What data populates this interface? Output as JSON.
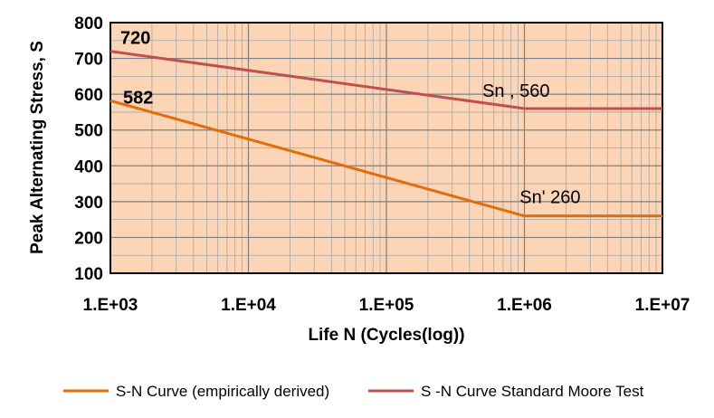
{
  "chart_data": {
    "type": "line",
    "title": "",
    "xlabel": "Life N  (Cycles(log))",
    "ylabel": "Peak Alternating Stress, S",
    "x_scale": "log",
    "xlim": [
      1000,
      10000000
    ],
    "ylim": [
      100,
      800
    ],
    "x_ticks": [
      1000,
      10000,
      100000,
      1000000,
      10000000
    ],
    "x_tick_labels": [
      "1.E+03",
      "1.E+04",
      "1.E+05",
      "1.E+06",
      "1.E+07"
    ],
    "y_ticks": [
      100,
      200,
      300,
      400,
      500,
      600,
      700,
      800
    ],
    "y_tick_labels": [
      "100",
      "200",
      "300",
      "400",
      "500",
      "600",
      "700",
      "800"
    ],
    "grid": true,
    "plot_background": "#fbd5b5",
    "grid_color": "#a6a6a6",
    "legend_position": "bottom",
    "series": [
      {
        "name": "S-N Curve (empirically derived)",
        "color": "#e46c0a",
        "x": [
          1000,
          1000000,
          10000000
        ],
        "y": [
          582,
          260,
          260
        ]
      },
      {
        "name": "S -N Curve Standard Moore Test",
        "color": "#c0504d",
        "x": [
          1000,
          1000000,
          10000000
        ],
        "y": [
          720,
          560,
          560
        ]
      }
    ],
    "annotations": [
      {
        "text": "720",
        "x": 1000,
        "y": 720,
        "style": "bold"
      },
      {
        "text": "582",
        "x": 1000,
        "y": 582,
        "style": "bold"
      },
      {
        "text": "Sn , 560",
        "x": 1000000,
        "y": 560,
        "style": "normal"
      },
      {
        "text": "Sn' 260",
        "x": 1000000,
        "y": 260,
        "style": "normal"
      }
    ]
  }
}
